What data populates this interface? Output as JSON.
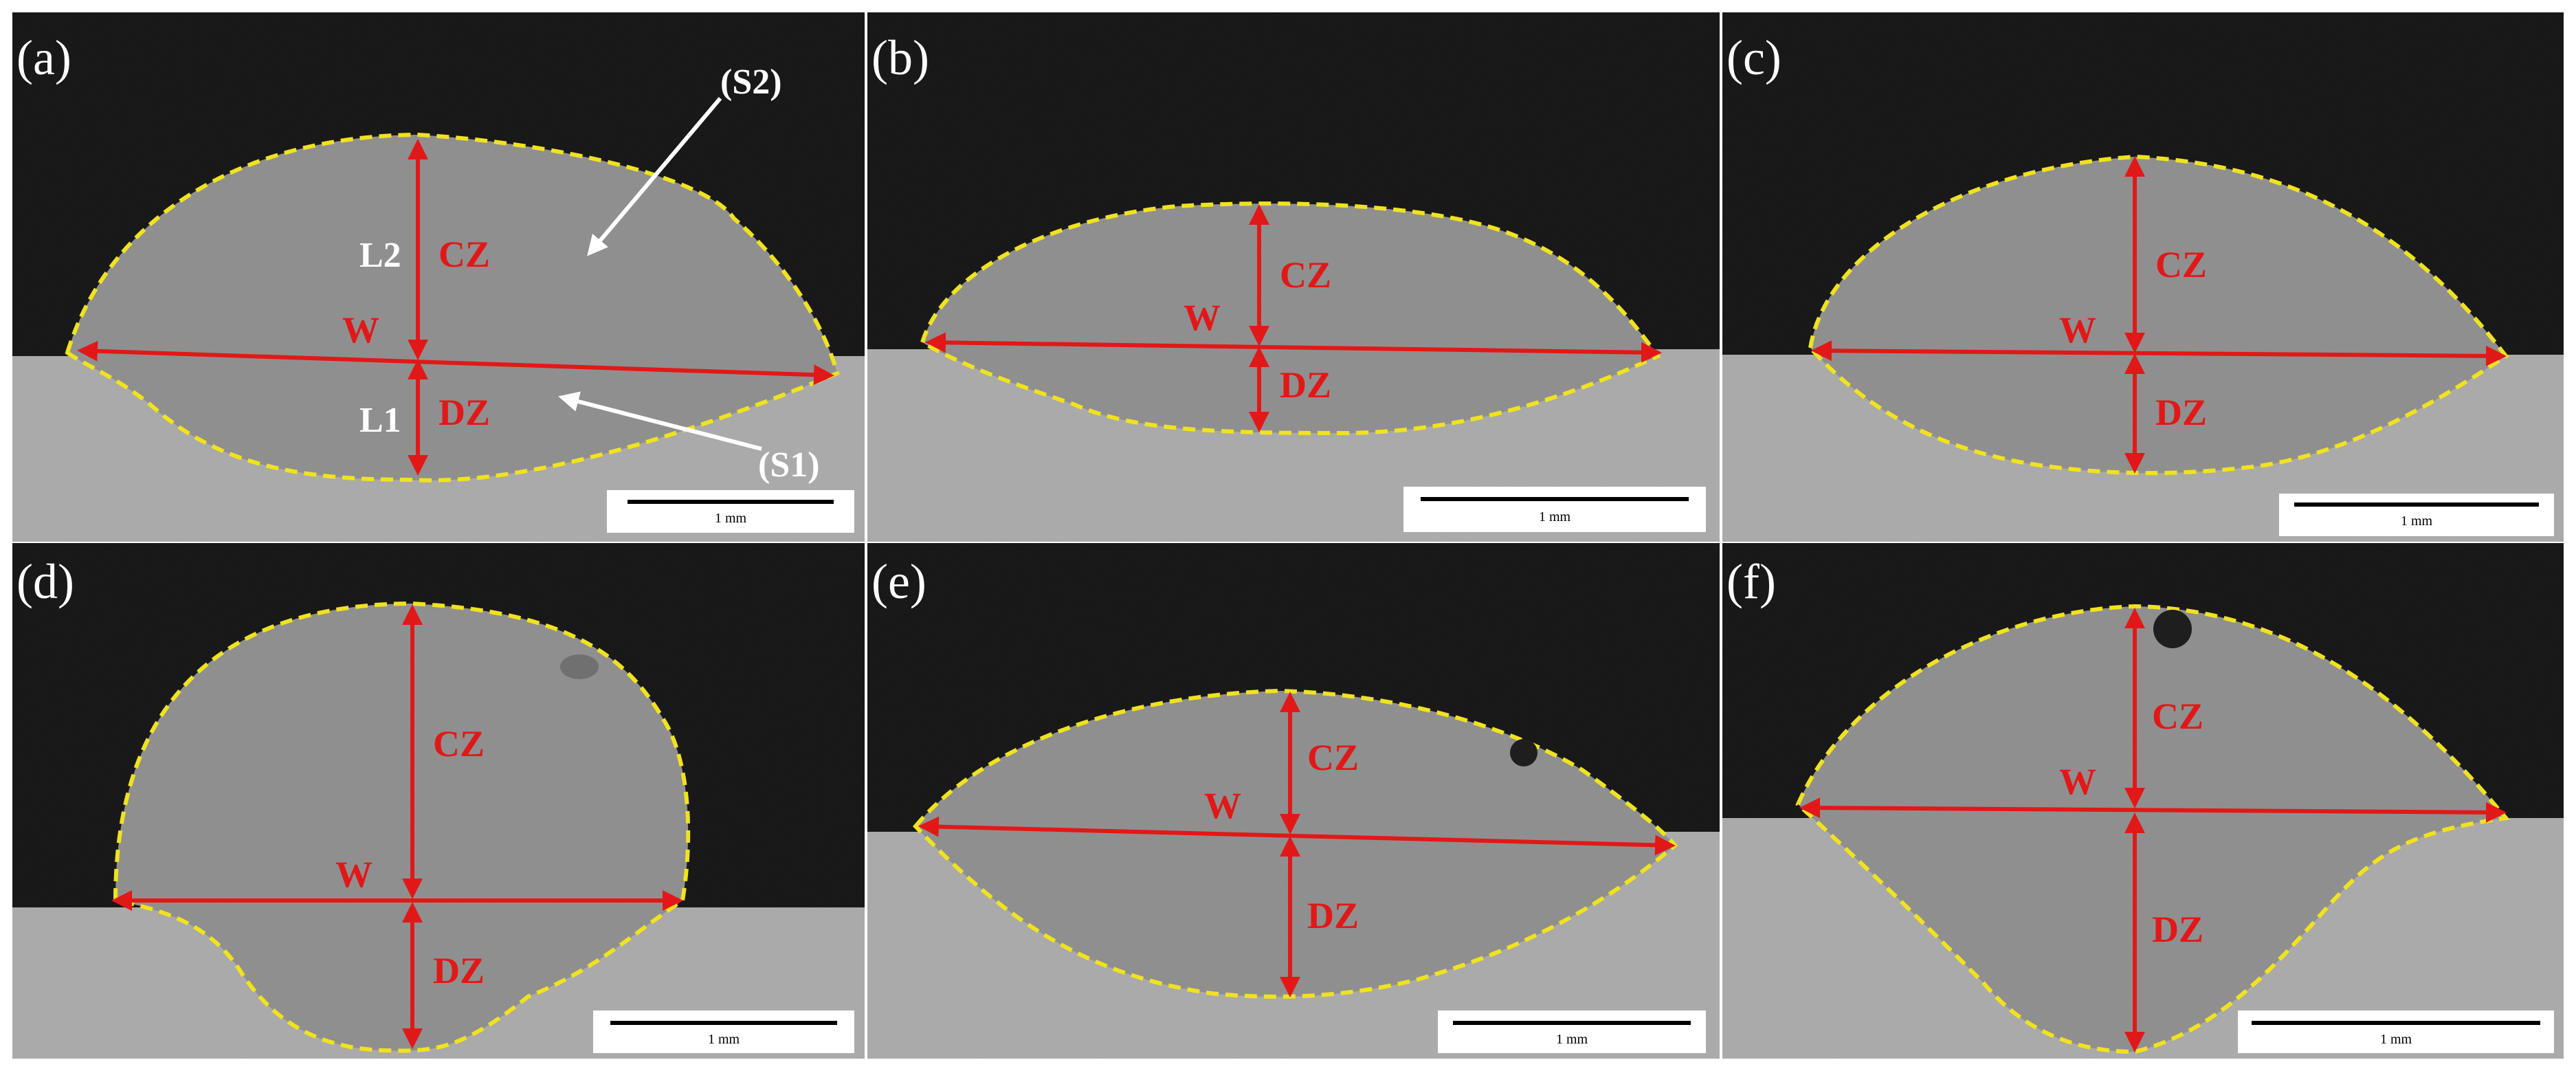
{
  "panels": [
    {
      "id": "a",
      "label": "(a)",
      "scale_text": "1 mm",
      "annotations": {
        "cz": "CZ",
        "dz": "DZ",
        "w": "W",
        "l2": "L2",
        "l1": "L1",
        "s2": "(S2)",
        "s1": "(S1)"
      }
    },
    {
      "id": "b",
      "label": "(b)",
      "scale_text": "1 mm",
      "annotations": {
        "cz": "CZ",
        "dz": "DZ",
        "w": "W"
      }
    },
    {
      "id": "c",
      "label": "(c)",
      "scale_text": "1 mm",
      "annotations": {
        "cz": "CZ",
        "dz": "DZ",
        "w": "W"
      }
    },
    {
      "id": "d",
      "label": "(d)",
      "scale_text": "1 mm",
      "annotations": {
        "cz": "CZ",
        "dz": "DZ",
        "w": "W"
      }
    },
    {
      "id": "e",
      "label": "(e)",
      "scale_text": "1 mm",
      "annotations": {
        "cz": "CZ",
        "dz": "DZ",
        "w": "W"
      }
    },
    {
      "id": "f",
      "label": "(f)",
      "scale_text": "1 mm",
      "annotations": {
        "cz": "CZ",
        "dz": "DZ",
        "w": "W"
      }
    }
  ],
  "colors": {
    "background_dark": "#141414",
    "substrate": "#aaaaaa",
    "weld": "#8e8e8e",
    "outline": "#f2e41a",
    "measure": "#e21818",
    "arrow_white": "#ffffff",
    "panel_label": "#ffffff"
  }
}
